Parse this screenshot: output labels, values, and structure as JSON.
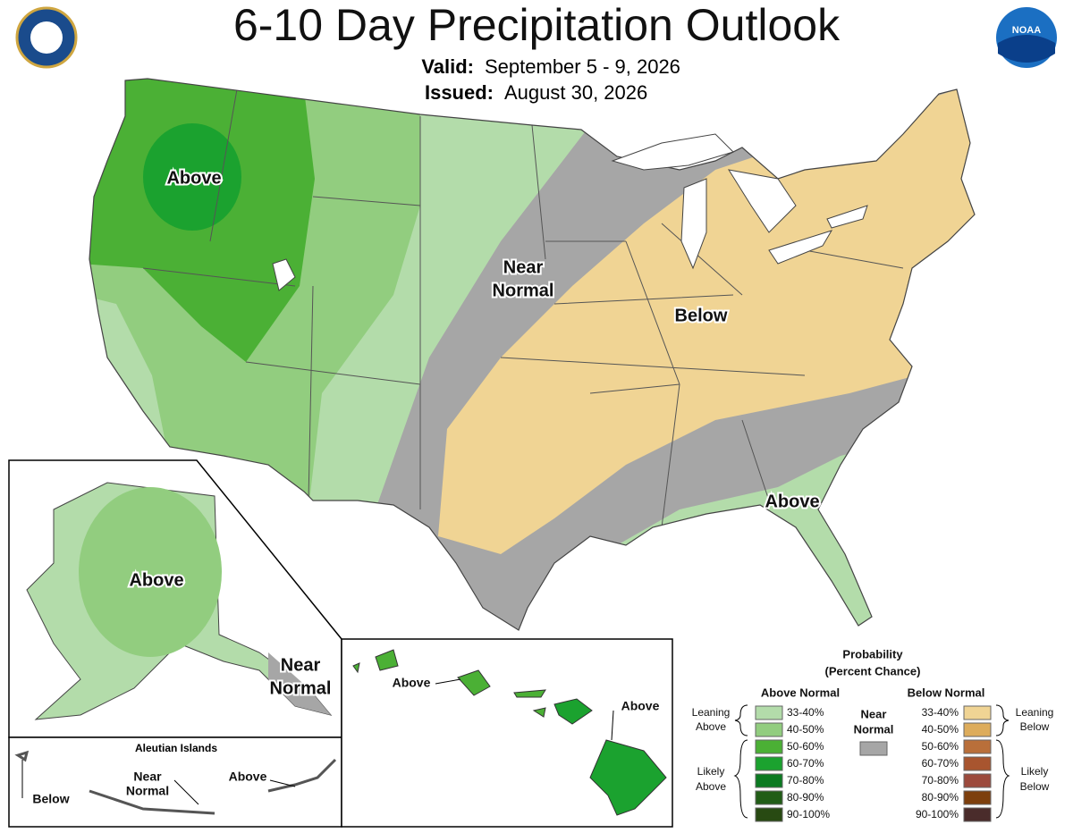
{
  "header": {
    "title": "6-10 Day Precipitation Outlook",
    "valid_label": "Valid:",
    "valid_date": "September 5 - 9, 2026",
    "issued_label": "Issued:",
    "issued_date": "August 30, 2026",
    "logo": "NOAA"
  },
  "conus_labels": {
    "above_west": "Above",
    "near_normal": [
      "Near",
      "Normal"
    ],
    "below": "Below",
    "above_southeast": "Above"
  },
  "alaska": {
    "above": "Above",
    "near_normal": [
      "Near",
      "Normal"
    ]
  },
  "aleutians": {
    "title": "Aleutian Islands",
    "below": "Below",
    "near_normal": [
      "Near",
      "Normal"
    ],
    "above": "Above"
  },
  "hawaii": {
    "above_west": "Above",
    "above_east": "Above"
  },
  "legend": {
    "title": [
      "Probability",
      "(Percent Chance)"
    ],
    "above_heading": "Above Normal",
    "below_heading": "Below Normal",
    "near_heading": [
      "Near",
      "Normal"
    ],
    "near_color": "#a6a6a6",
    "above_bins": [
      {
        "label": "33-40%",
        "color": "#b3dcaa"
      },
      {
        "label": "40-50%",
        "color": "#92cd7f"
      },
      {
        "label": "50-60%",
        "color": "#4bb035"
      },
      {
        "label": "60-70%",
        "color": "#1ba22f"
      },
      {
        "label": "70-80%",
        "color": "#0b7a21"
      },
      {
        "label": "80-90%",
        "color": "#215d16"
      },
      {
        "label": "90-100%",
        "color": "#284a12"
      }
    ],
    "below_bins": [
      {
        "label": "33-40%",
        "color": "#f0d494"
      },
      {
        "label": "40-50%",
        "color": "#ddac5b"
      },
      {
        "label": "50-60%",
        "color": "#b96f3a"
      },
      {
        "label": "60-70%",
        "color": "#a8552f"
      },
      {
        "label": "70-80%",
        "color": "#9c4a3c"
      },
      {
        "label": "80-90%",
        "color": "#7d3f0d"
      },
      {
        "label": "90-100%",
        "color": "#4a2c2b"
      }
    ],
    "leaning_above": [
      "Leaning",
      "Above"
    ],
    "likely_above": [
      "Likely",
      "Above"
    ],
    "leaning_below": [
      "Leaning",
      "Below"
    ],
    "likely_below": [
      "Likely",
      "Below"
    ]
  }
}
